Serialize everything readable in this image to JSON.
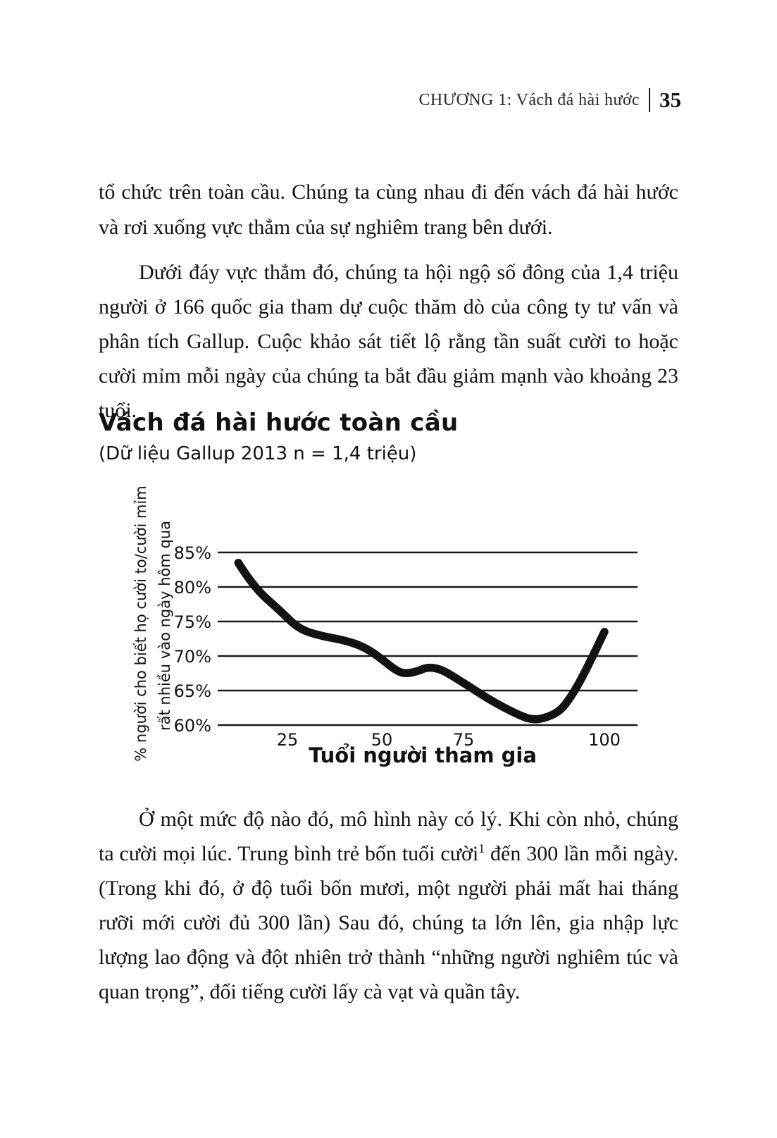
{
  "header": {
    "chapter_title": "CHƯƠNG 1: Vách đá hài hước",
    "page_number": "35"
  },
  "body": {
    "p1": "tổ chức trên toàn cầu. Chúng ta cùng nhau đi đến vách đá hài hước và rơi xuống vực thẳm của sự nghiêm trang bên dưới.",
    "p2": "Dưới đáy vực thẳm đó, chúng ta hội ngộ số đông của 1,4 triệu người ở 166 quốc gia tham dự cuộc thăm dò của công ty tư vấn và phân tích Gallup. Cuộc khảo sát tiết lộ rằng tần suất cười to hoặc cười mỉm mỗi ngày của chúng ta bắt đầu giảm mạnh vào khoảng 23 tuổi.",
    "p3_before_footnote": "Ở một mức độ nào đó, mô hình này có lý. Khi còn nhỏ, chúng ta cười mọi lúc. Trung bình trẻ bốn tuổi cười",
    "p3_footnote_marker": "1",
    "p3_after_footnote": " đến 300 lần mỗi ngày. (Trong khi đó, ở độ tuổi bốn mươi, một người phải mất hai tháng rưỡi mới cười đủ 300 lần) Sau đó, chúng ta lớn lên, gia nhập lực lượng lao động và đột nhiên trở thành “những người nghiêm túc và quan trọng”, đổi tiếng cười lấy cà vạt và quần tây."
  },
  "chart": {
    "title": "Vách đá hài hước toàn cầu",
    "subtitle": "(Dữ liệu Gallup 2013 n = 1,4 triệu)",
    "y_axis_label_line1": "% người cho biết họ cười to/cười mỉm",
    "y_axis_label_line2": "rất nhiều vào ngày hôm qua",
    "x_axis_label": "Tuổi người tham gia"
  },
  "chart_data": {
    "type": "line",
    "title": "Vách đá hài hước toàn cầu",
    "subtitle": "(Dữ liệu Gallup 2013 n = 1,4 triệu)",
    "xlabel": "Tuổi người tham gia",
    "ylabel": "% người cho biết họ cười to/cười mỉm rất nhiều vào ngày hôm qua",
    "x": [
      12,
      16,
      23,
      28,
      34,
      40,
      45,
      49,
      54,
      57,
      61,
      64,
      68,
      72,
      76,
      79,
      82,
      85,
      87,
      89,
      92,
      94,
      96,
      98,
      100
    ],
    "y": [
      83.5,
      80.0,
      76.6,
      73.9,
      72.9,
      72.3,
      71.4,
      70.0,
      68.0,
      67.4,
      67.8,
      68.4,
      68.1,
      67.0,
      65.6,
      64.0,
      62.6,
      61.4,
      60.8,
      60.9,
      61.9,
      64.0,
      66.8,
      70.1,
      73.5
    ],
    "xticks": [
      25,
      50,
      75,
      100
    ],
    "yticks": [
      "85%",
      "80%",
      "75%",
      "70%",
      "65%",
      "60%"
    ],
    "ylim": [
      60,
      85
    ],
    "xlim": [
      10,
      105
    ],
    "grid": "horizontal",
    "legend": "none",
    "line_color": "#121212"
  }
}
